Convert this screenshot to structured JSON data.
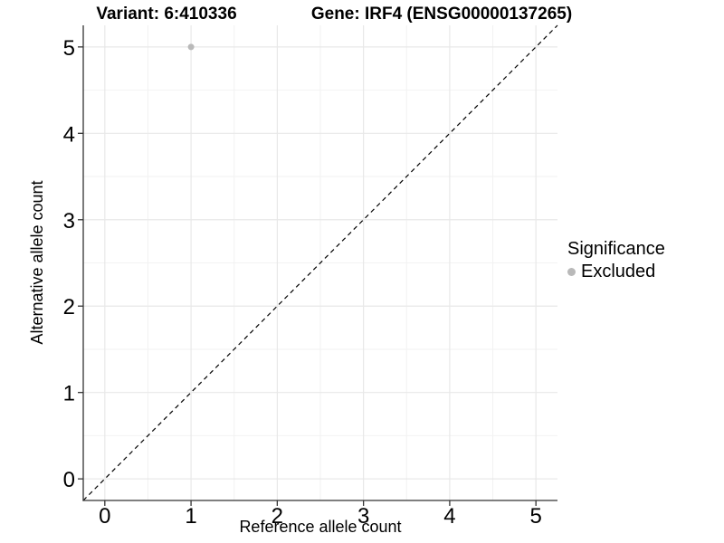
{
  "titles": {
    "variant": "Variant: 6:410336",
    "gene": "Gene: IRF4 (ENSG00000137265)"
  },
  "legend": {
    "title": "Significance",
    "items": [
      {
        "label": "Excluded",
        "color": "#b9b9b9"
      }
    ]
  },
  "chart_data": {
    "type": "scatter",
    "title_left": "Variant: 6:410336",
    "title_right": "Gene: IRF4 (ENSG00000137265)",
    "xlabel": "Reference allele count",
    "ylabel": "Alternative allele count",
    "xlim": [
      -0.25,
      5.25
    ],
    "ylim": [
      -0.25,
      5.25
    ],
    "xticks": [
      0,
      1,
      2,
      3,
      4,
      5
    ],
    "yticks": [
      0,
      1,
      2,
      3,
      4,
      5
    ],
    "minor_xticks": [
      0.5,
      1.5,
      2.5,
      3.5,
      4.5
    ],
    "minor_yticks": [
      0.5,
      1.5,
      2.5,
      3.5,
      4.5
    ],
    "grid": true,
    "legend_position": "right",
    "series": [
      {
        "name": "Excluded",
        "color": "#b9b9b9",
        "points": [
          {
            "x": 1,
            "y": 5
          }
        ]
      }
    ],
    "annotations": [
      {
        "type": "abline",
        "slope": 1,
        "intercept": 0,
        "linestyle": "dashed",
        "color": "#000000"
      }
    ],
    "style": {
      "grid_major_color": "#e8e8e8",
      "grid_minor_color": "#f2f2f2",
      "axis_color": "#333333",
      "tick_label_color": "#000000",
      "background": "#ffffff"
    }
  }
}
